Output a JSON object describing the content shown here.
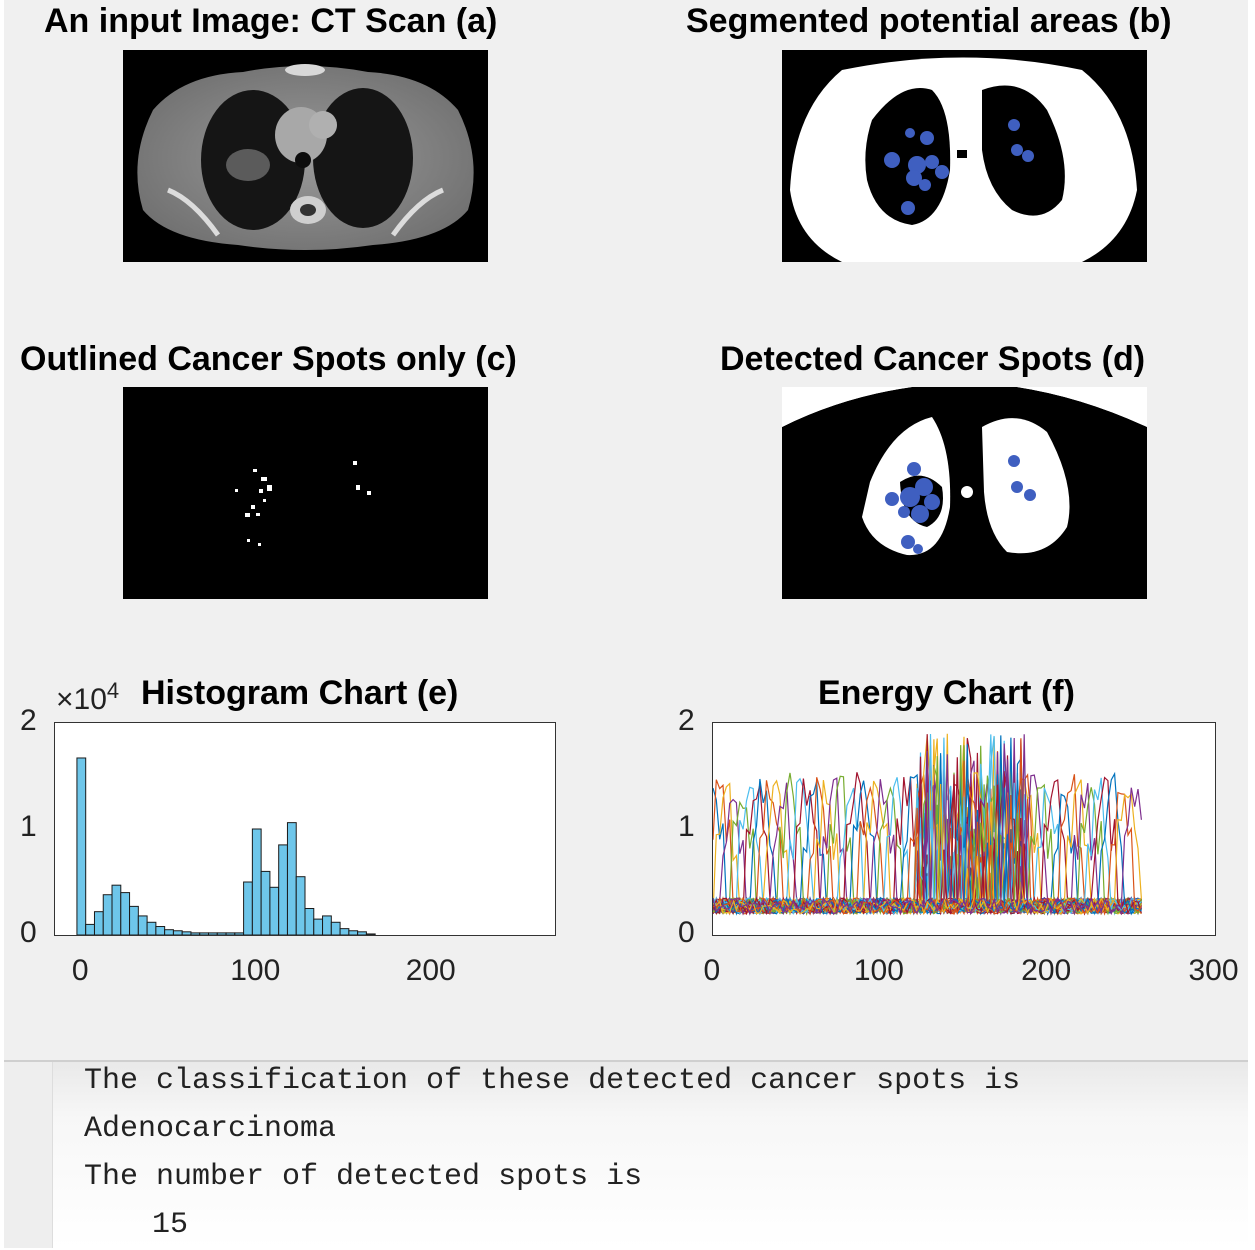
{
  "panels": {
    "a": {
      "title": "An input Image: CT Scan (a)"
    },
    "b": {
      "title": "Segmented potential areas (b)"
    },
    "c": {
      "title": "Outlined Cancer Spots only (c)"
    },
    "d": {
      "title": "Detected Cancer Spots (d)"
    }
  },
  "chart_data": [
    {
      "type": "bar",
      "title": "Histogram Chart (e)",
      "exponent_label": "×10",
      "exponent": "4",
      "xlim": [
        -15,
        270
      ],
      "ylim": [
        0,
        2
      ],
      "xticks": [
        "0",
        "100",
        "200"
      ],
      "xtick_values": [
        0,
        100,
        200
      ],
      "yticks": [
        "0",
        "1",
        "2"
      ],
      "ytick_values": [
        0,
        1,
        2
      ],
      "bar_color": "#6ec6ea",
      "bins_x": [
        0,
        5,
        10,
        15,
        20,
        25,
        30,
        35,
        40,
        45,
        50,
        55,
        60,
        65,
        70,
        75,
        80,
        85,
        90,
        95,
        100,
        105,
        110,
        115,
        120,
        125,
        130,
        135,
        140,
        145,
        150,
        155,
        160,
        165
      ],
      "values": [
        1.67,
        0.1,
        0.22,
        0.38,
        0.47,
        0.4,
        0.27,
        0.18,
        0.12,
        0.08,
        0.05,
        0.04,
        0.03,
        0.02,
        0.02,
        0.02,
        0.02,
        0.02,
        0.02,
        0.5,
        1.0,
        0.6,
        0.45,
        0.85,
        1.06,
        0.55,
        0.25,
        0.15,
        0.18,
        0.12,
        0.06,
        0.04,
        0.03,
        0.01
      ]
    },
    {
      "type": "line",
      "title": "Energy Chart (f)",
      "xlim": [
        0,
        300
      ],
      "ylim": [
        0,
        2
      ],
      "xticks": [
        "0",
        "100",
        "200",
        "300"
      ],
      "xtick_values": [
        0,
        100,
        200,
        300
      ],
      "yticks": [
        "0",
        "1",
        "2"
      ],
      "ytick_values": [
        0,
        1,
        2
      ],
      "x_extent": [
        0,
        256
      ],
      "series_count": 60,
      "typical_peak": 1.4,
      "max_peak": 2.0
    }
  ],
  "console": {
    "line1": "The classification of these detected cancer spots is",
    "line2": "Adenocarcinoma",
    "line3": "The number of detected spots is",
    "line4": "15"
  },
  "colors": {
    "figure_bg": "#f0f0f0",
    "spot_blue": "#3f5fc0",
    "hist_bar": "#6ec6ea"
  }
}
